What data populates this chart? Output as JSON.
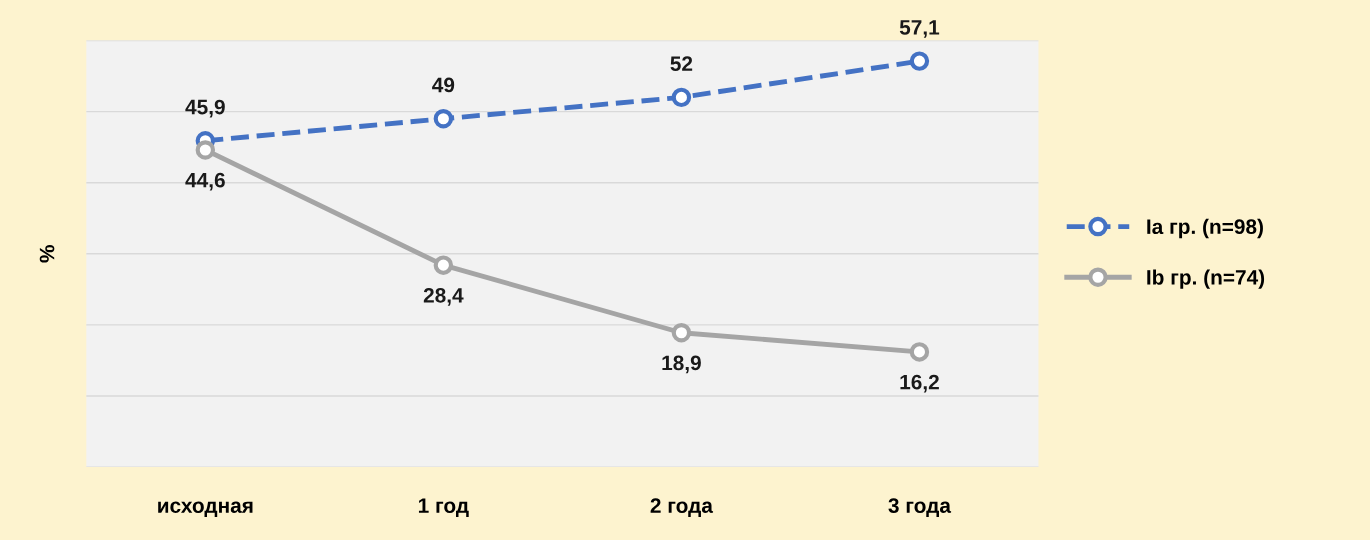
{
  "chart_data": {
    "type": "line",
    "ylabel": "%",
    "categories": [
      "исходная",
      "1 год",
      "2 года",
      "3 года"
    ],
    "series": [
      {
        "name": "Ia гр. (n=98)",
        "color": "#4472c4",
        "values": [
          45.9,
          49,
          52,
          57.1
        ],
        "value_labels": [
          "45,9",
          "49",
          "52",
          "57,1"
        ],
        "line_style": "dashed"
      },
      {
        "name": "Ib гр. (n=74)",
        "color": "#a5a5a5",
        "values": [
          44.6,
          28.4,
          18.9,
          16.2
        ],
        "value_labels": [
          "44,6",
          "28,4",
          "18,9",
          "16,2"
        ],
        "line_style": "solid"
      }
    ],
    "ylim": [
      0,
      60
    ],
    "yticks": [
      {
        "value": 0,
        "label": null
      },
      {
        "value": 10,
        "label": null
      },
      {
        "value": 20,
        "label": null
      },
      {
        "value": 30,
        "label": null
      },
      {
        "value": 40,
        "label": null
      },
      {
        "value": 50,
        "label": null
      },
      {
        "value": 60,
        "label": null
      }
    ],
    "tick_labels": "x",
    "grid": "y",
    "legend": "right",
    "marker": "circle"
  }
}
